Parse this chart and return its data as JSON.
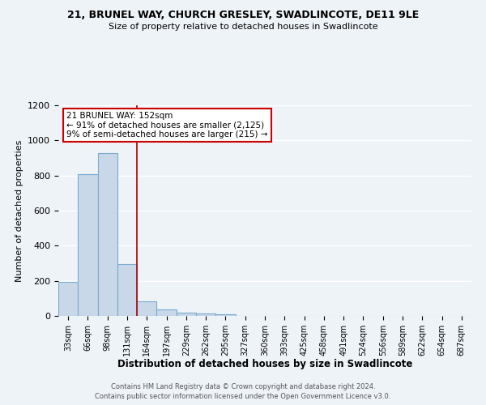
{
  "title_line1": "21, BRUNEL WAY, CHURCH GRESLEY, SWADLINCOTE, DE11 9LE",
  "title_line2": "Size of property relative to detached houses in Swadlincote",
  "xlabel": "Distribution of detached houses by size in Swadlincote",
  "ylabel": "Number of detached properties",
  "footer_line1": "Contains HM Land Registry data © Crown copyright and database right 2024.",
  "footer_line2": "Contains public sector information licensed under the Open Government Licence v3.0.",
  "bar_labels": [
    "33sqm",
    "66sqm",
    "98sqm",
    "131sqm",
    "164sqm",
    "197sqm",
    "229sqm",
    "262sqm",
    "295sqm",
    "327sqm",
    "360sqm",
    "393sqm",
    "425sqm",
    "458sqm",
    "491sqm",
    "524sqm",
    "556sqm",
    "589sqm",
    "622sqm",
    "654sqm",
    "687sqm"
  ],
  "bar_values": [
    195,
    810,
    930,
    295,
    85,
    38,
    18,
    12,
    7,
    0,
    0,
    0,
    0,
    0,
    0,
    0,
    0,
    0,
    0,
    0,
    0
  ],
  "bar_color": "#c8d8e8",
  "bar_edge_color": "#7aaacf",
  "background_color": "#eef3f8",
  "grid_color": "#ffffff",
  "annotation_text_line1": "21 BRUNEL WAY: 152sqm",
  "annotation_text_line2": "← 91% of detached houses are smaller (2,125)",
  "annotation_text_line3": "9% of semi-detached houses are larger (215) →",
  "annotation_box_facecolor": "#ffffff",
  "annotation_box_edgecolor": "#cc0000",
  "red_line_index": 3.5,
  "ylim": [
    0,
    1200
  ],
  "yticks": [
    0,
    200,
    400,
    600,
    800,
    1000,
    1200
  ]
}
